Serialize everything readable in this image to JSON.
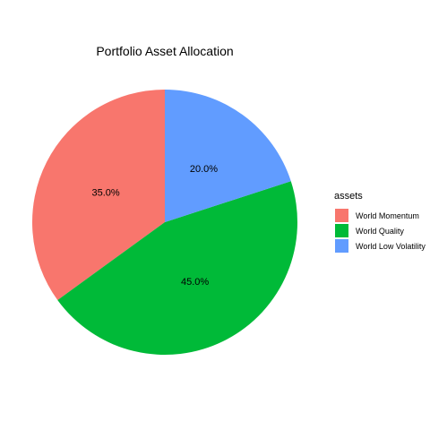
{
  "chart_data": {
    "type": "pie",
    "title": "Portfolio Asset Allocation",
    "legend_title": "assets",
    "legend_position": "right",
    "categories": [
      "World Momentum",
      "World Quality",
      "World Low Volatility"
    ],
    "values": [
      35,
      45,
      20
    ],
    "labels": [
      "35.0%",
      "45.0%",
      "20.0%"
    ],
    "colors": [
      "#F8766D",
      "#00BA38",
      "#619CFF"
    ]
  }
}
